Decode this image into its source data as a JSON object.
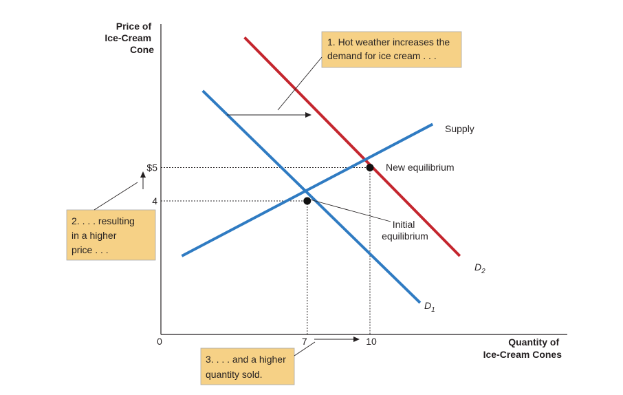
{
  "colors": {
    "supply": "#2f7bc2",
    "d1": "#2f7bc2",
    "d2": "#c4262e",
    "callout_bg": "#f6d186",
    "axis": "#231f20",
    "point": "#111111"
  },
  "chart_data": {
    "type": "line",
    "xlabel": [
      "Quantity of",
      "Ice-Cream Cones"
    ],
    "ylabel": [
      "Price of",
      "Ice-Cream",
      "Cone"
    ],
    "xlim": [
      0,
      14
    ],
    "ylim": [
      0,
      10
    ],
    "x_ticks": [
      {
        "value": 0,
        "label": "0"
      },
      {
        "value": 7,
        "label": "7"
      },
      {
        "value": 10,
        "label": "10"
      }
    ],
    "y_ticks": [
      {
        "value": 4,
        "label": "4"
      },
      {
        "value": 5,
        "label": "$5"
      }
    ],
    "series": [
      {
        "name": "Supply",
        "points": [
          [
            1.0,
            2.35
          ],
          [
            13.0,
            6.3
          ]
        ]
      },
      {
        "name": "D",
        "subscript": "1",
        "points": [
          [
            2.0,
            7.3
          ],
          [
            12.4,
            0.95
          ]
        ]
      },
      {
        "name": "D",
        "subscript": "2",
        "points": [
          [
            4.0,
            8.9
          ],
          [
            14.3,
            2.35
          ]
        ]
      }
    ],
    "equilibria": [
      {
        "label": [
          "Initial",
          "equilibrium"
        ],
        "x": 7,
        "y": 4
      },
      {
        "label": [
          "New equilibrium"
        ],
        "x": 10,
        "y": 5
      }
    ],
    "annotations": [
      {
        "id": "demand-shift",
        "lines": [
          "1. Hot weather increases the",
          "demand for ice cream . . ."
        ]
      },
      {
        "id": "higher-price",
        "lines": [
          "2. . . . resulting",
          "in a higher",
          "price . . ."
        ]
      },
      {
        "id": "higher-quantity",
        "lines": [
          "3. . . . and a higher",
          "quantity sold."
        ]
      }
    ]
  }
}
